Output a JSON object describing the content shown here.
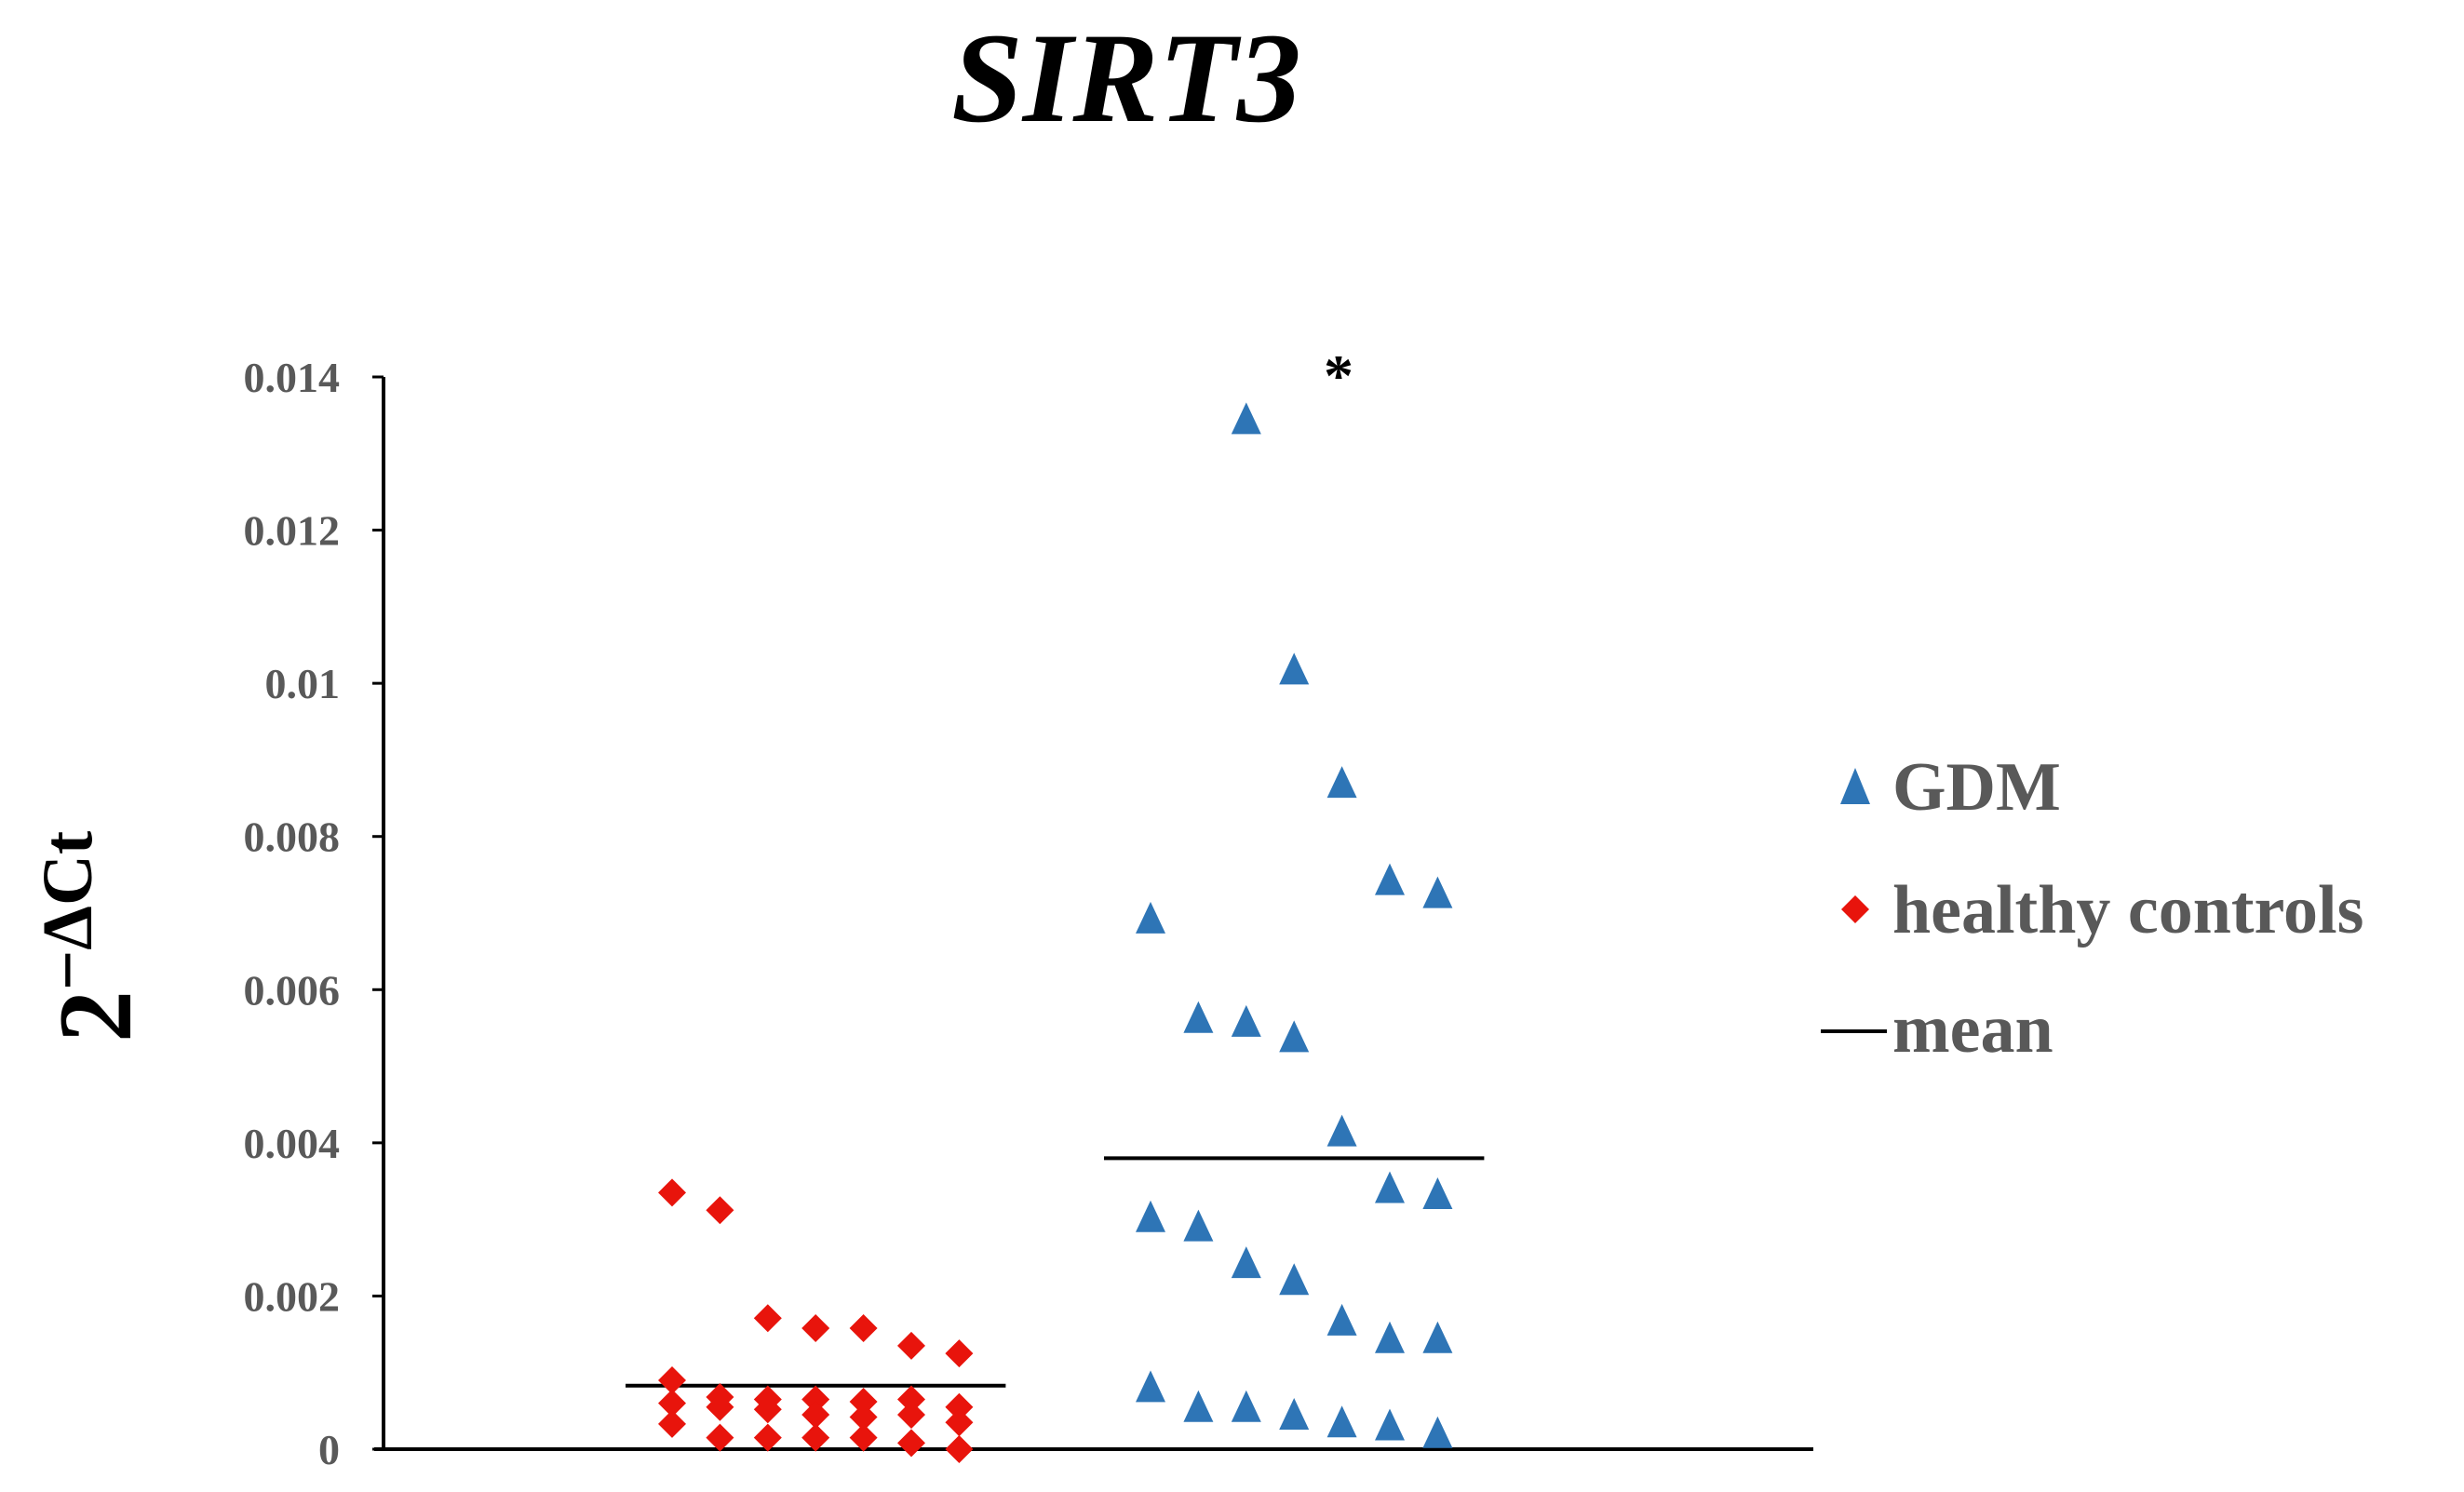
{
  "chart_data": {
    "type": "scatter",
    "title": "SIRT3",
    "ylabel": {
      "base": "2",
      "superscript": "−ΔCt"
    },
    "ylim": [
      0,
      0.014
    ],
    "yticks": [
      {
        "value": 0,
        "label": "0"
      },
      {
        "value": 0.002,
        "label": "0.002"
      },
      {
        "value": 0.004,
        "label": "0.004"
      },
      {
        "value": 0.006,
        "label": "0.006"
      },
      {
        "value": 0.008,
        "label": "0.008"
      },
      {
        "value": 0.01,
        "label": "0.01"
      },
      {
        "value": 0.012,
        "label": "0.012"
      },
      {
        "value": 0.014,
        "label": "0.014"
      }
    ],
    "grid": false,
    "legend_position": "right",
    "legend": [
      {
        "name": "GDM",
        "marker": "triangle",
        "color": "#2E75B6"
      },
      {
        "name": "healthy controls",
        "marker": "diamond",
        "color": "#E8140C"
      },
      {
        "name": "mean",
        "marker": "line",
        "color": "#000000"
      }
    ],
    "annotation": "*",
    "series": [
      {
        "name": "healthy controls",
        "marker": "diamond",
        "color": "#E8140C",
        "mean": 0.00083,
        "points": [
          {
            "x": 1,
            "y": 0.00335
          },
          {
            "x": 1,
            "y": 0.0009
          },
          {
            "x": 1,
            "y": 0.0006
          },
          {
            "x": 1,
            "y": 0.00033
          },
          {
            "x": 2,
            "y": 0.00312
          },
          {
            "x": 2,
            "y": 0.00068
          },
          {
            "x": 2,
            "y": 0.00055
          },
          {
            "x": 2,
            "y": 0.00015
          },
          {
            "x": 3,
            "y": 0.00171
          },
          {
            "x": 3,
            "y": 0.00065
          },
          {
            "x": 3,
            "y": 0.00052
          },
          {
            "x": 3,
            "y": 0.00015
          },
          {
            "x": 4,
            "y": 0.00158
          },
          {
            "x": 4,
            "y": 0.00065
          },
          {
            "x": 4,
            "y": 0.00045
          },
          {
            "x": 4,
            "y": 0.00015
          },
          {
            "x": 5,
            "y": 0.00158
          },
          {
            "x": 5,
            "y": 0.00062
          },
          {
            "x": 5,
            "y": 0.00042
          },
          {
            "x": 5,
            "y": 0.00015
          },
          {
            "x": 6,
            "y": 0.00135
          },
          {
            "x": 6,
            "y": 0.00065
          },
          {
            "x": 6,
            "y": 0.00045
          },
          {
            "x": 6,
            "y": 8e-05
          },
          {
            "x": 7,
            "y": 0.00125
          },
          {
            "x": 7,
            "y": 0.00055
          },
          {
            "x": 7,
            "y": 0.00035
          },
          {
            "x": 7,
            "y": 0.0
          }
        ]
      },
      {
        "name": "GDM",
        "marker": "triangle",
        "color": "#2E75B6",
        "mean": 0.0038,
        "points": [
          {
            "x": 11,
            "y": 0.0069
          },
          {
            "x": 11,
            "y": 0.003
          },
          {
            "x": 11,
            "y": 0.00078
          },
          {
            "x": 12,
            "y": 0.0056
          },
          {
            "x": 12,
            "y": 0.00288
          },
          {
            "x": 12,
            "y": 0.00052
          },
          {
            "x": 13,
            "y": 0.01342
          },
          {
            "x": 13,
            "y": 0.00555
          },
          {
            "x": 13,
            "y": 0.0024
          },
          {
            "x": 13,
            "y": 0.00052
          },
          {
            "x": 14,
            "y": 0.01015
          },
          {
            "x": 14,
            "y": 0.00535
          },
          {
            "x": 14,
            "y": 0.00218
          },
          {
            "x": 14,
            "y": 0.00042
          },
          {
            "x": 15,
            "y": 0.00867
          },
          {
            "x": 15,
            "y": 0.00412
          },
          {
            "x": 15,
            "y": 0.00165
          },
          {
            "x": 15,
            "y": 0.00032
          },
          {
            "x": 16,
            "y": 0.0074
          },
          {
            "x": 16,
            "y": 0.00338
          },
          {
            "x": 16,
            "y": 0.00142
          },
          {
            "x": 16,
            "y": 0.00028
          },
          {
            "x": 17,
            "y": 0.00723
          },
          {
            "x": 17,
            "y": 0.0033
          },
          {
            "x": 17,
            "y": 0.00142
          },
          {
            "x": 17,
            "y": 0.00018
          }
        ]
      }
    ]
  }
}
